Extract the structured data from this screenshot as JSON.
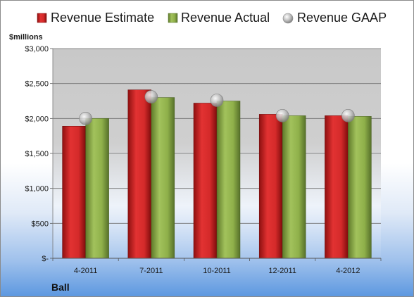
{
  "chart_data": {
    "type": "bar",
    "unit_label": "$millions",
    "company": "Ball",
    "categories": [
      "4-2011",
      "7-2011",
      "10-2011",
      "12-2011",
      "4-2012"
    ],
    "y_ticks": [
      "$3,000",
      "$2,500",
      "$2,000",
      "$1,500",
      "$1,000",
      "$500",
      "$-"
    ],
    "ylim": [
      0,
      3000
    ],
    "grid": true,
    "legend_placement": "top",
    "series": [
      {
        "name": "Revenue Estimate",
        "kind": "bar",
        "color": "#d42a2a",
        "values": [
          1890,
          2410,
          2220,
          2060,
          2040
        ]
      },
      {
        "name": "Revenue Actual",
        "kind": "bar",
        "color": "#8fb04a",
        "values": [
          2000,
          2300,
          2250,
          2040,
          2030
        ]
      },
      {
        "name": "Revenue GAAP",
        "kind": "marker",
        "color": "#b8b8b8",
        "values": [
          2000,
          2310,
          2260,
          2040,
          2040
        ]
      }
    ]
  }
}
